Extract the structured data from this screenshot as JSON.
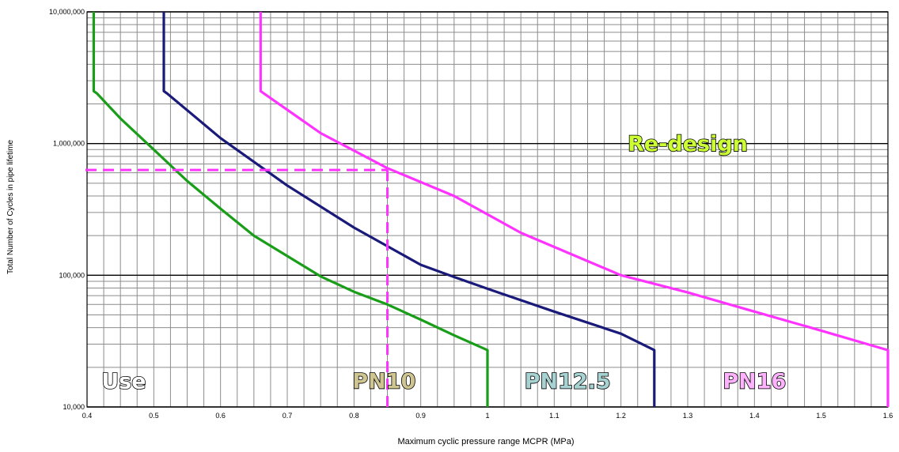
{
  "chart_data": {
    "type": "line",
    "xlabel": "Maximum cyclic pressure range MCPR (MPa)",
    "ylabel": "Total Number of Cycles in pipe lifetime",
    "xlim": [
      0.4,
      1.6
    ],
    "ylim": [
      10000,
      10000000
    ],
    "yscale": "log",
    "grid": true,
    "x_ticks": [
      "0.4",
      "0.5",
      "0.6",
      "0.7",
      "0.8",
      "0.9",
      "1",
      "1.1",
      "1.2",
      "1.3",
      "1.4",
      "1.5",
      "1.6"
    ],
    "y_ticks": [
      "10,000",
      "100,000",
      "1,000,000",
      "10,000,000"
    ],
    "series": [
      {
        "name": "PN10",
        "color": "#1a9e1a",
        "x": [
          0.41,
          0.41,
          0.415,
          0.45,
          0.5,
          0.55,
          0.6,
          0.65,
          0.7,
          0.75,
          0.8,
          0.85,
          0.9,
          0.95,
          1.0,
          1.0
        ],
        "y": [
          10000000,
          2500000,
          2400000,
          1550000,
          900000,
          520000,
          320000,
          200000,
          140000,
          98000,
          75000,
          60000,
          46000,
          35000,
          27000,
          10000
        ]
      },
      {
        "name": "PN12.5",
        "color": "#1a1a7a",
        "x": [
          0.515,
          0.515,
          0.52,
          0.6,
          0.7,
          0.8,
          0.9,
          0.95,
          1.0,
          1.1,
          1.2,
          1.25,
          1.25
        ],
        "y": [
          10000000,
          2500000,
          2400000,
          1100000,
          480000,
          230000,
          120000,
          97000,
          79000,
          53000,
          36000,
          27000,
          10000
        ]
      },
      {
        "name": "PN16",
        "color": "#ff33ff",
        "x": [
          0.66,
          0.66,
          0.665,
          0.75,
          0.85,
          0.95,
          1.05,
          1.2,
          1.3,
          1.4,
          1.5,
          1.6,
          1.6
        ],
        "y": [
          10000000,
          2500000,
          2400000,
          1200000,
          650000,
          400000,
          210000,
          100000,
          74000,
          53000,
          38000,
          27000,
          10000
        ]
      }
    ],
    "reference_lines": {
      "color": "#ff33ff",
      "x": 0.85,
      "y": 630000
    },
    "annotations": [
      {
        "text": "Use",
        "x": 0.455,
        "y": 13800,
        "fill": "#ffffff"
      },
      {
        "text": "PN10",
        "x": 0.845,
        "y": 13800,
        "fill": "#cfc590"
      },
      {
        "text": "PN12.5",
        "x": 1.12,
        "y": 13800,
        "fill": "#a7d2d2"
      },
      {
        "text": "PN16",
        "x": 1.4,
        "y": 13800,
        "fill": "#ffb3ff"
      },
      {
        "text": "Re-design",
        "x": 1.3,
        "y": 880000,
        "fill": "#ccff33"
      }
    ]
  }
}
